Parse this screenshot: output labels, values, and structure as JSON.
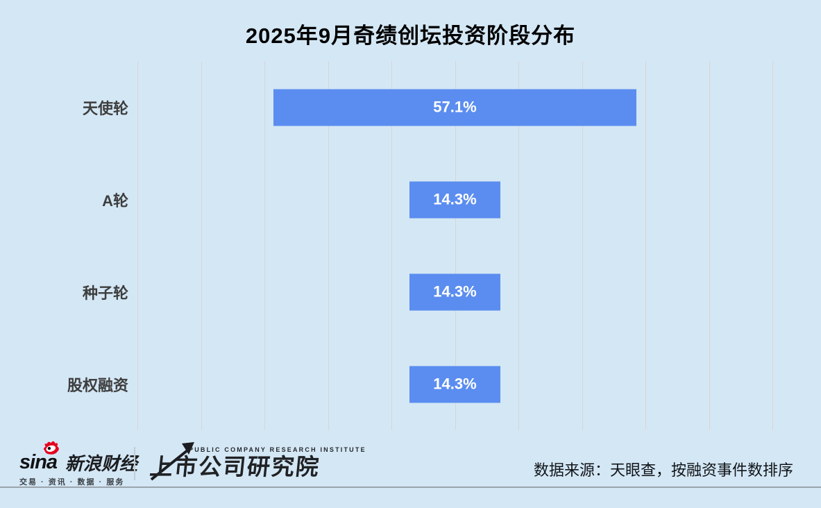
{
  "chart_data": {
    "type": "bar",
    "subtype": "horizontal_centered_funnel",
    "title": "2025年9月奇绩创坛投资阶段分布",
    "categories": [
      "天使轮",
      "A轮",
      "种子轮",
      "股权融资"
    ],
    "values": [
      57.1,
      14.3,
      14.3,
      14.3
    ],
    "value_labels": [
      "57.1%",
      "14.3%",
      "14.3%",
      "14.3%"
    ],
    "xlabel": "",
    "ylabel": "",
    "xlim": [
      0,
      100
    ],
    "grid": true,
    "gridline_step_percent": 10,
    "legend": "none",
    "bars_centered": true
  },
  "footer": {
    "sina": {
      "brand": "sina",
      "wordmark": "新浪财经",
      "tagline": "交易 · 资讯 · 数据 · 服务"
    },
    "institute": {
      "subtitle": "PUBLIC COMPANY RESEARCH INSTITUTE",
      "name": "上市公司研究院"
    },
    "source_note": "数据来源：天眼查，按融资事件数排序"
  },
  "colors": {
    "background": "#d4e7f5",
    "bar": "#5b8df0",
    "gridline": "#dbd5cf",
    "title_text": "#000000",
    "category_text": "#3e3e3e",
    "value_text": "#ffffff",
    "source_text": "#101418",
    "sina_red": "#e6001f",
    "footer_rule": "#9aa4ac"
  }
}
